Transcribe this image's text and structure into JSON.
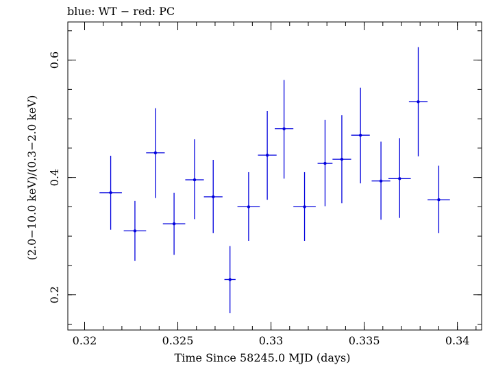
{
  "chart_data": {
    "type": "scatter",
    "title": "blue: WT − red: PC",
    "xlabel": "Time Since 58245.0 MJD (days)",
    "ylabel": "(2.0−10.0 keV)/(0.3−2.0 keV)",
    "xlim": [
      0.3191,
      0.3413
    ],
    "ylim": [
      0.14,
      0.665
    ],
    "x_ticks": [
      0.32,
      0.325,
      0.33,
      0.335,
      0.34
    ],
    "x_tick_labels": [
      "0.32",
      "0.325",
      "0.33",
      "0.335",
      "0.34"
    ],
    "y_ticks": [
      0.2,
      0.4,
      0.6
    ],
    "y_tick_labels": [
      "0.2",
      "0.4",
      "0.6"
    ],
    "grid": false,
    "series": [
      {
        "color": "#0000dd",
        "points": [
          {
            "x": 0.3214,
            "xerr": 0.0006,
            "y": 0.374,
            "yerr_low": 0.063,
            "yerr_high": 0.063
          },
          {
            "x": 0.3227,
            "xerr": 0.0006,
            "y": 0.309,
            "yerr_low": 0.051,
            "yerr_high": 0.051
          },
          {
            "x": 0.3238,
            "xerr": 0.0005,
            "y": 0.442,
            "yerr_low": 0.077,
            "yerr_high": 0.076
          },
          {
            "x": 0.3248,
            "xerr": 0.0006,
            "y": 0.321,
            "yerr_low": 0.053,
            "yerr_high": 0.053
          },
          {
            "x": 0.3259,
            "xerr": 0.0005,
            "y": 0.396,
            "yerr_low": 0.067,
            "yerr_high": 0.069
          },
          {
            "x": 0.3269,
            "xerr": 0.0005,
            "y": 0.367,
            "yerr_low": 0.062,
            "yerr_high": 0.063
          },
          {
            "x": 0.3278,
            "xerr": 0.0003,
            "y": 0.226,
            "yerr_low": 0.057,
            "yerr_high": 0.057
          },
          {
            "x": 0.3288,
            "xerr": 0.0006,
            "y": 0.35,
            "yerr_low": 0.058,
            "yerr_high": 0.059
          },
          {
            "x": 0.3298,
            "xerr": 0.0005,
            "y": 0.438,
            "yerr_low": 0.076,
            "yerr_high": 0.075
          },
          {
            "x": 0.3307,
            "xerr": 0.0005,
            "y": 0.483,
            "yerr_low": 0.085,
            "yerr_high": 0.083
          },
          {
            "x": 0.3318,
            "xerr": 0.0006,
            "y": 0.35,
            "yerr_low": 0.058,
            "yerr_high": 0.059
          },
          {
            "x": 0.3329,
            "xerr": 0.0004,
            "y": 0.424,
            "yerr_low": 0.073,
            "yerr_high": 0.074
          },
          {
            "x": 0.3338,
            "xerr": 0.0005,
            "y": 0.431,
            "yerr_low": 0.075,
            "yerr_high": 0.075
          },
          {
            "x": 0.3348,
            "xerr": 0.0005,
            "y": 0.472,
            "yerr_low": 0.082,
            "yerr_high": 0.081
          },
          {
            "x": 0.3359,
            "xerr": 0.0005,
            "y": 0.394,
            "yerr_low": 0.066,
            "yerr_high": 0.067
          },
          {
            "x": 0.3369,
            "xerr": 0.0006,
            "y": 0.398,
            "yerr_low": 0.067,
            "yerr_high": 0.069
          },
          {
            "x": 0.3379,
            "xerr": 0.0005,
            "y": 0.529,
            "yerr_low": 0.093,
            "yerr_high": 0.093
          },
          {
            "x": 0.339,
            "xerr": 0.0006,
            "y": 0.362,
            "yerr_low": 0.057,
            "yerr_high": 0.058
          }
        ]
      }
    ]
  }
}
